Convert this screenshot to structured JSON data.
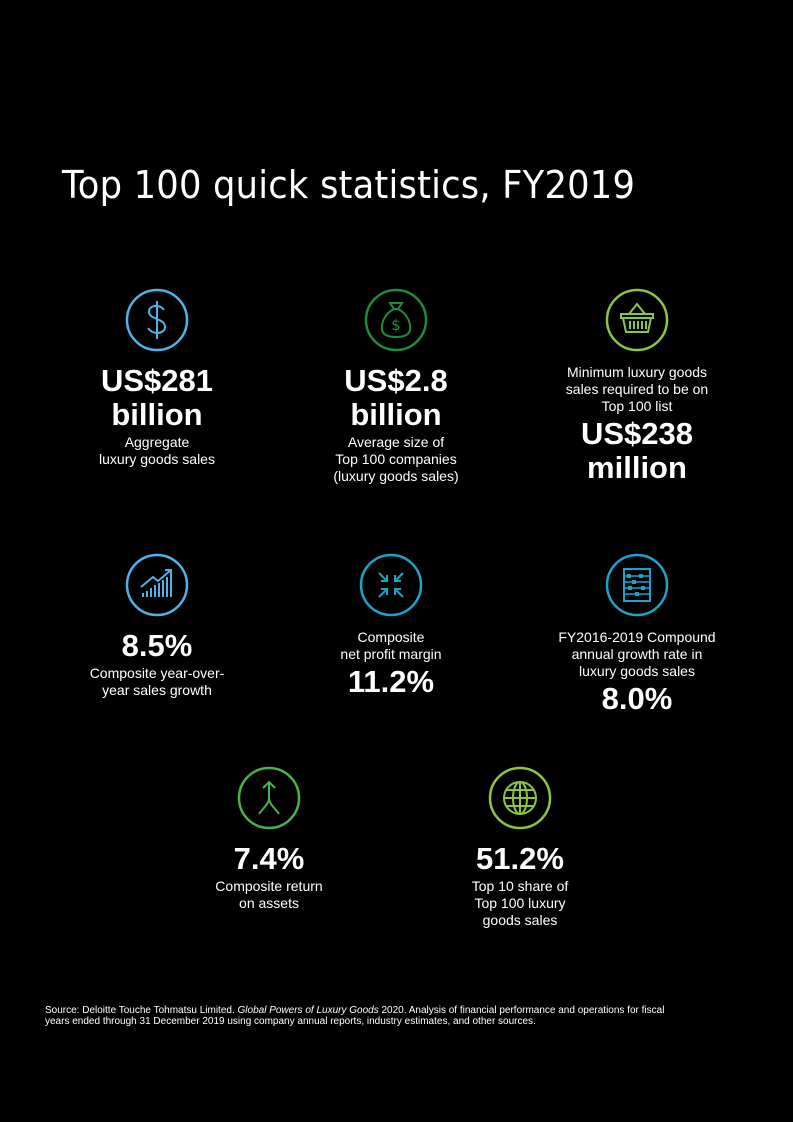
{
  "title": "Top 100 quick statistics, FY2019",
  "colors": {
    "blue": "#4fb3e8",
    "dark_green": "#1e8c3e",
    "lime": "#8cc63f",
    "cyan": "#1aa5c8",
    "green": "#43b549"
  },
  "stats": [
    {
      "icon": "dollar-circle-icon",
      "value_line1": "US$281",
      "value_line2": "billion",
      "desc_line1": "Aggregate",
      "desc_line2": "luxury goods sales"
    },
    {
      "icon": "money-bag-icon",
      "value_line1": "US$2.8",
      "value_line2": "billion",
      "desc_line1": "Average size of",
      "desc_line2": "Top 100 companies",
      "desc_line3": "(luxury goods sales)"
    },
    {
      "icon": "shopping-basket-icon",
      "desc_line1": "Minimum luxury goods",
      "desc_line2": "sales required to be on",
      "desc_line3": "Top 100 list",
      "value_line1": "US$238",
      "value_line2": "million"
    },
    {
      "icon": "growth-chart-icon",
      "value": "8.5%",
      "desc_line1": "Composite year-over-",
      "desc_line2": "year sales growth"
    },
    {
      "icon": "compress-arrows-icon",
      "desc_line1": "Composite",
      "desc_line2": "net profit margin",
      "value": "11.2%"
    },
    {
      "icon": "abacus-icon",
      "desc_line1": "FY2016-2019 Compound",
      "desc_line2": "annual growth rate in",
      "desc_line3": "luxury goods sales",
      "value": "8.0%"
    },
    {
      "icon": "merge-arrow-icon",
      "value": "7.4%",
      "desc_line1": "Composite return",
      "desc_line2": "on assets"
    },
    {
      "icon": "globe-icon",
      "value": "51.2%",
      "desc_line1": "Top 10 share of",
      "desc_line2": "Top 100 luxury",
      "desc_line3": "goods sales"
    }
  ],
  "footer": {
    "prefix": "Source: Deloitte Touche Tohmatsu Limited. ",
    "italic": "Global Powers of Luxury Goods",
    "suffix_line1": " 2020. Analysis of financial performance and operations for fiscal",
    "line2": "years ended through 31 December 2019 using company annual reports, industry estimates, and other sources."
  }
}
